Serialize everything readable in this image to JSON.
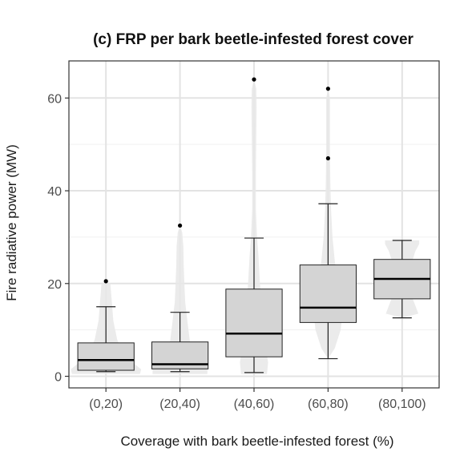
{
  "chart_data": {
    "type": "boxplot",
    "title": "(c) FRP per bark beetle-infested forest cover",
    "xlabel": "Coverage with bark beetle-infested forest (%)",
    "ylabel": "Fire radiative power (MW)",
    "categories": [
      "(0,20)",
      "(20,40)",
      "(40,60)",
      "(60,80)",
      "(80,100)"
    ],
    "ylim": [
      -2.5,
      68
    ],
    "yticks": [
      0,
      20,
      40,
      60
    ],
    "grid": true,
    "colors": {
      "box_fill": "#d4d4d4",
      "violin_fill": "#e8e8e8",
      "grid": "#e3e3e3",
      "panel_border": "#333333"
    },
    "boxes": [
      {
        "category": "(0,20)",
        "whisker_low": 1.0,
        "q1": 1.3,
        "median": 3.5,
        "q3": 7.2,
        "whisker_high": 15.0,
        "outliers": [
          20.5
        ]
      },
      {
        "category": "(20,40)",
        "whisker_low": 1.0,
        "q1": 1.6,
        "median": 2.6,
        "q3": 7.4,
        "whisker_high": 13.8,
        "outliers": [
          32.5
        ]
      },
      {
        "category": "(40,60)",
        "whisker_low": 0.8,
        "q1": 4.2,
        "median": 9.2,
        "q3": 18.8,
        "whisker_high": 29.8,
        "outliers": [
          64.0
        ]
      },
      {
        "category": "(60,80)",
        "whisker_low": 3.8,
        "q1": 11.6,
        "median": 14.8,
        "q3": 24.0,
        "whisker_high": 37.2,
        "outliers": [
          47.0,
          62.0
        ]
      },
      {
        "category": "(80,100)",
        "whisker_low": 12.6,
        "q1": 16.7,
        "median": 21.0,
        "q3": 25.2,
        "whisker_high": 29.3,
        "outliers": []
      }
    ],
    "violins": [
      {
        "category": "(0,20)",
        "profile": [
          [
            0.5,
            0.92
          ],
          [
            1.5,
            0.95
          ],
          [
            3,
            0.72
          ],
          [
            5,
            0.45
          ],
          [
            8,
            0.3
          ],
          [
            12,
            0.2
          ],
          [
            16,
            0.16
          ],
          [
            20,
            0.12
          ],
          [
            20.5,
            0.0
          ]
        ]
      },
      {
        "category": "(20,40)",
        "profile": [
          [
            0.5,
            0.74
          ],
          [
            1.5,
            0.74
          ],
          [
            3,
            0.5
          ],
          [
            5,
            0.32
          ],
          [
            8,
            0.26
          ],
          [
            12,
            0.2
          ],
          [
            16,
            0.14
          ],
          [
            20,
            0.12
          ],
          [
            24,
            0.1
          ],
          [
            28,
            0.09
          ],
          [
            31,
            0.06
          ],
          [
            32.5,
            0.0
          ]
        ]
      },
      {
        "category": "(40,60)",
        "profile": [
          [
            0.5,
            0.35
          ],
          [
            3,
            0.38
          ],
          [
            6,
            0.32
          ],
          [
            10,
            0.26
          ],
          [
            14,
            0.22
          ],
          [
            20,
            0.16
          ],
          [
            26,
            0.12
          ],
          [
            30,
            0.08
          ],
          [
            36,
            0.05
          ],
          [
            44,
            0.05
          ],
          [
            52,
            0.06
          ],
          [
            58,
            0.07
          ],
          [
            62,
            0.06
          ],
          [
            64,
            0.0
          ]
        ]
      },
      {
        "category": "(60,80)",
        "profile": [
          [
            3.8,
            0.0
          ],
          [
            6,
            0.18
          ],
          [
            10,
            0.34
          ],
          [
            13,
            0.38
          ],
          [
            16,
            0.34
          ],
          [
            20,
            0.26
          ],
          [
            25,
            0.18
          ],
          [
            30,
            0.12
          ],
          [
            36,
            0.08
          ],
          [
            42,
            0.06
          ],
          [
            48,
            0.05
          ],
          [
            55,
            0.05
          ],
          [
            60,
            0.05
          ],
          [
            62,
            0.0
          ]
        ]
      },
      {
        "category": "(80,100)",
        "profile": [
          [
            12.6,
            0.0
          ],
          [
            13.5,
            0.44
          ],
          [
            16,
            0.32
          ],
          [
            18,
            0.22
          ],
          [
            21,
            0.2
          ],
          [
            24,
            0.24
          ],
          [
            27,
            0.36
          ],
          [
            28.5,
            0.46
          ],
          [
            29.3,
            0.46
          ]
        ]
      }
    ]
  }
}
